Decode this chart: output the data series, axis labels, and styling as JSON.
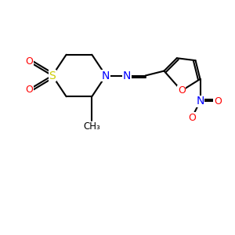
{
  "bg_color": "#ffffff",
  "atom_colors": {
    "S": "#cccc00",
    "N": "#0000ff",
    "O": "#ff0000",
    "C": "#000000"
  },
  "bond_color": "#000000",
  "bond_width": 1.5
}
